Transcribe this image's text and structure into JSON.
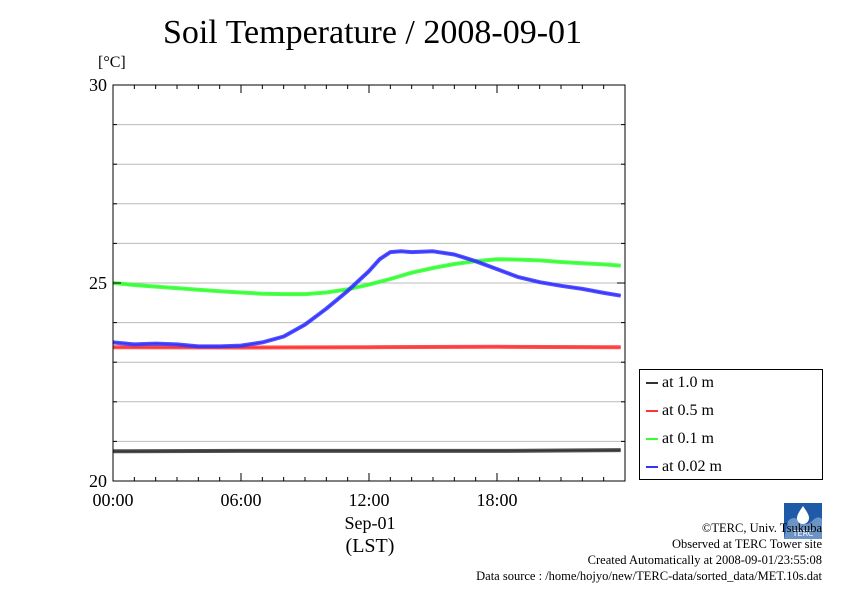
{
  "chart_data": {
    "type": "line",
    "title": "Soil Temperature / 2008-09-01",
    "ylabel": "[°C]",
    "ylim": [
      20,
      30
    ],
    "yticks": [
      20,
      25,
      30
    ],
    "xlim": [
      "00:00",
      "24:00"
    ],
    "xticks": [
      "00:00",
      "06:00",
      "12:00",
      "18:00"
    ],
    "x_date_label": "Sep-01",
    "x_tz_label": "(LST)",
    "grid": true,
    "legend_position": "right",
    "series": [
      {
        "name": "at 1.0 m",
        "color": "#333333",
        "x": [
          0,
          6,
          12,
          18,
          23.8
        ],
        "values": [
          20.75,
          20.76,
          20.76,
          20.76,
          20.78
        ]
      },
      {
        "name": "at 0.5 m",
        "color": "#ff3333",
        "x": [
          0,
          6,
          12,
          18,
          23.8
        ],
        "values": [
          23.38,
          23.37,
          23.38,
          23.39,
          23.38
        ]
      },
      {
        "name": "at 0.1 m",
        "color": "#33ff33",
        "x": [
          0,
          1,
          2,
          3,
          4,
          5,
          6,
          7,
          8,
          9,
          10,
          11,
          12,
          13,
          14,
          15,
          16,
          17,
          18,
          19,
          20,
          21,
          22,
          23,
          23.8
        ],
        "values": [
          25.0,
          24.95,
          24.91,
          24.87,
          24.83,
          24.79,
          24.76,
          24.73,
          24.72,
          24.72,
          24.76,
          24.84,
          24.96,
          25.1,
          25.26,
          25.38,
          25.48,
          25.55,
          25.6,
          25.59,
          25.57,
          25.53,
          25.5,
          25.47,
          25.44
        ]
      },
      {
        "name": "at 0.02 m",
        "color": "#3333ff",
        "x": [
          0,
          1,
          2,
          3,
          4,
          5,
          6,
          7,
          8,
          9,
          10,
          11,
          12,
          12.5,
          13,
          13.5,
          14,
          15,
          16,
          17,
          18,
          19,
          20,
          21,
          22,
          23,
          23.8
        ],
        "values": [
          23.5,
          23.45,
          23.47,
          23.45,
          23.4,
          23.4,
          23.42,
          23.5,
          23.65,
          23.95,
          24.35,
          24.8,
          25.3,
          25.6,
          25.78,
          25.8,
          25.78,
          25.8,
          25.72,
          25.55,
          25.35,
          25.15,
          25.02,
          24.93,
          24.85,
          24.75,
          24.68
        ]
      }
    ]
  },
  "credits": {
    "copyright": "©TERC, Univ. Tsukuba",
    "site": "Observed at TERC Tower site",
    "created": "Created Automatically at 2008-09-01/23:55:08",
    "source": "Data source : /home/hojyo/new/TERC-data/sorted_data/MET.10s.dat",
    "logo_text": "TERC"
  },
  "colors": {
    "grid": "#bbbbbb",
    "axis": "#000000",
    "logo": "#1e5aa8"
  }
}
